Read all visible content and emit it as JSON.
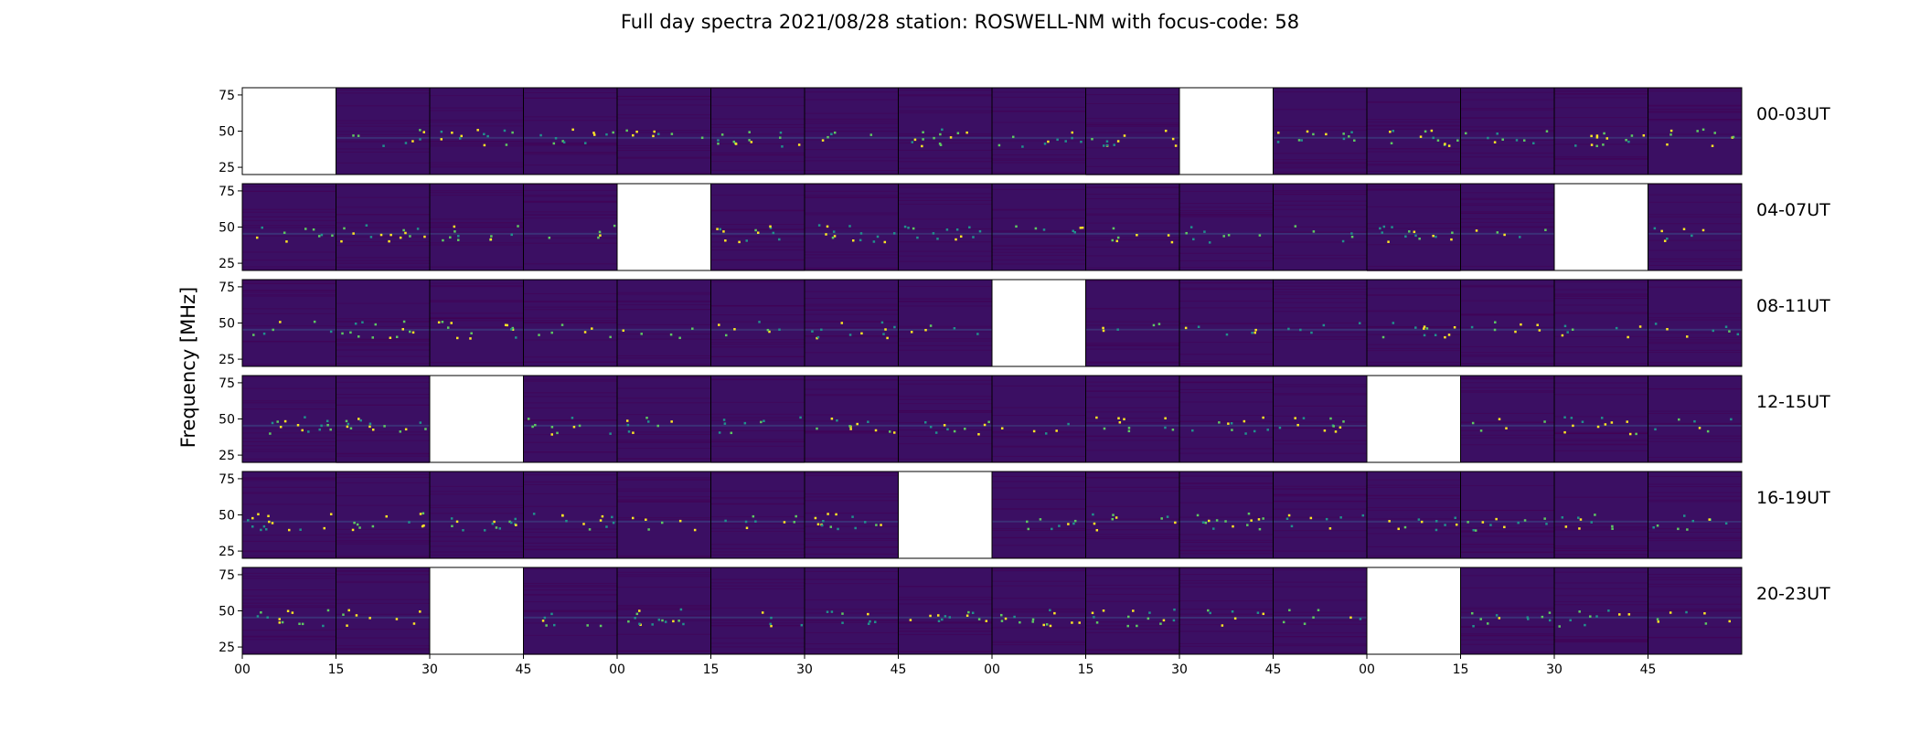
{
  "chart_data": {
    "type": "heatmap",
    "title": "Full day spectra 2021/08/28 station: ROSWELL-NM with focus-code: 58",
    "ylabel": "Frequency [MHz]",
    "xlabel": "",
    "colormap": "viridis",
    "colormap_stops": [
      "#440154",
      "#3b528b",
      "#21918c",
      "#5ec962",
      "#fde725"
    ],
    "background_color": "#3b0f63",
    "empty_color": "#ffffff",
    "y_ticks": [
      25,
      50,
      75
    ],
    "ylim": [
      20,
      80
    ],
    "x_tick_labels": [
      "00",
      "15",
      "30",
      "45",
      "00",
      "15",
      "30",
      "45",
      "00",
      "15",
      "30",
      "45",
      "00",
      "15",
      "30",
      "45"
    ],
    "rows": [
      {
        "label": "00-03UT",
        "missing_panels": [
          0,
          10
        ]
      },
      {
        "label": "04-07UT",
        "missing_panels": [
          4,
          14
        ]
      },
      {
        "label": "08-11UT",
        "missing_panels": [
          8
        ]
      },
      {
        "label": "12-15UT",
        "missing_panels": [
          2,
          12
        ]
      },
      {
        "label": "16-19UT",
        "missing_panels": [
          7
        ]
      },
      {
        "label": "20-23UT",
        "missing_panels": [
          2,
          12
        ]
      }
    ],
    "panels_per_row": 16,
    "panel_minutes": 15
  }
}
